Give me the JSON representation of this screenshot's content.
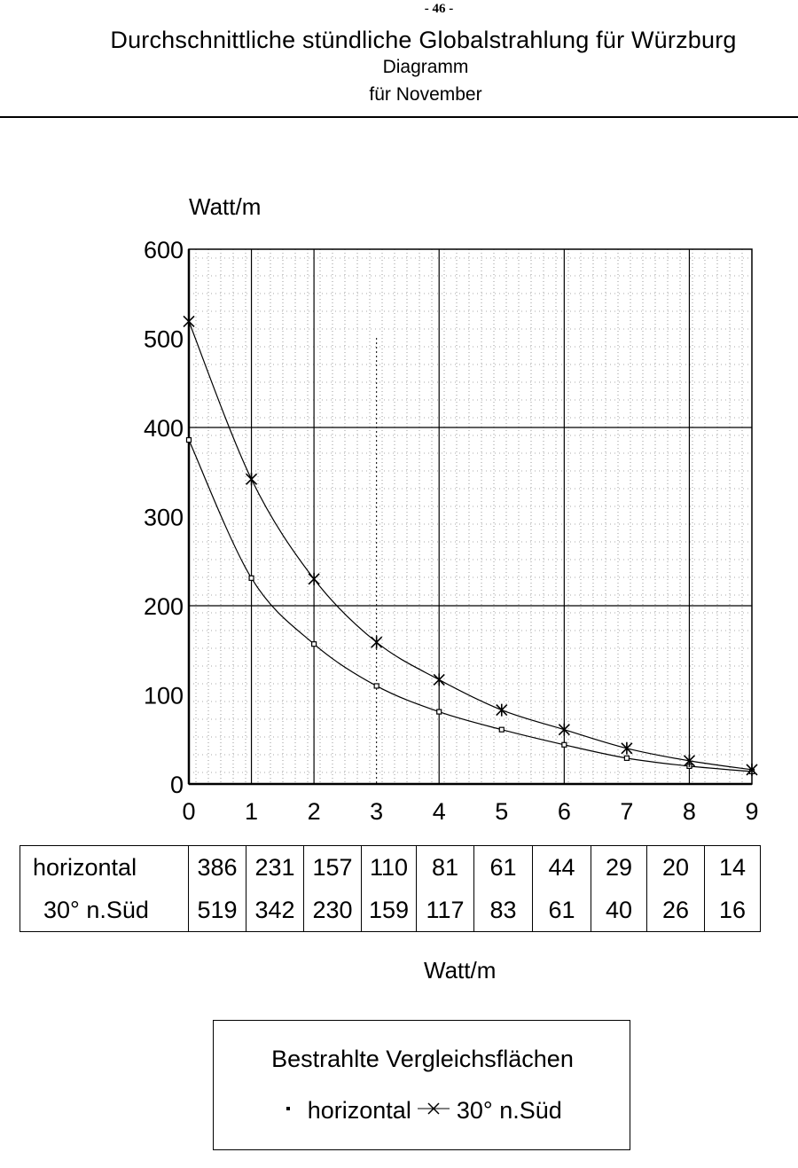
{
  "page_number": "- 46 -",
  "header": {
    "title": "Durchschnittliche stündliche Globalstrahlung für Würzburg",
    "subtitle": "Diagramm",
    "subtitle2": "für November"
  },
  "chart_data": {
    "type": "line",
    "title": "Durchschnittliche stündliche Globalstrahlung für Würzburg",
    "ylabel": "Watt/m",
    "xlabel": "Watt/m",
    "x": [
      0,
      1,
      2,
      3,
      4,
      5,
      6,
      7,
      8,
      9
    ],
    "xlim": [
      0,
      9
    ],
    "ylim": [
      0,
      600
    ],
    "yticks": [
      0,
      100,
      200,
      300,
      400,
      500,
      600
    ],
    "xticks": [
      0,
      1,
      2,
      3,
      4,
      5,
      6,
      7,
      8,
      9
    ],
    "grid": true,
    "legend_title": "Bestrahlte Vergleichsflächen",
    "legend_placement": "bottom",
    "series": [
      {
        "name": "horizontal",
        "marker": "square-dot",
        "values": [
          386,
          231,
          157,
          110,
          81,
          61,
          44,
          29,
          20,
          14
        ]
      },
      {
        "name": "30° n.Süd",
        "marker": "asterisk",
        "values": [
          519,
          342,
          230,
          159,
          117,
          83,
          61,
          40,
          26,
          16
        ]
      }
    ]
  }
}
